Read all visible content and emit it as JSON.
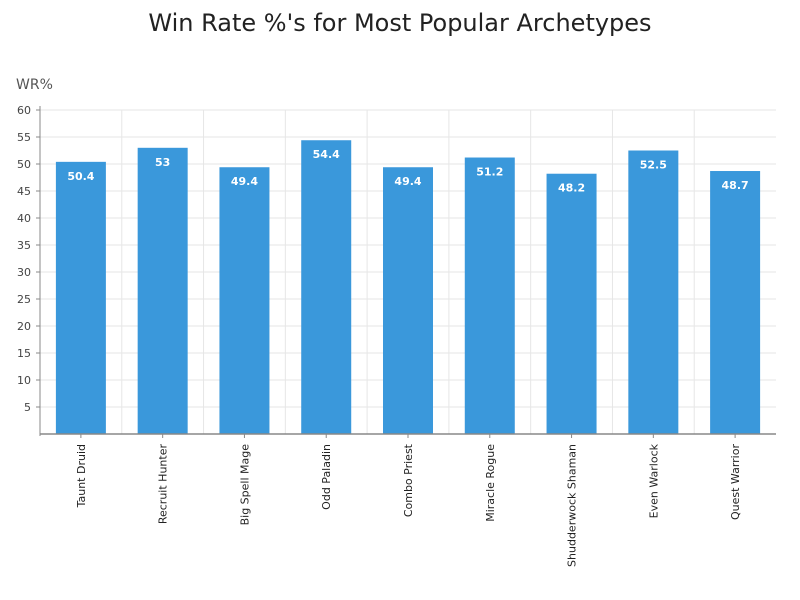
{
  "chart_data": {
    "type": "bar",
    "title": "Win Rate %'s for Most Popular Archetypes",
    "xlabel": "",
    "ylabel": "WR%",
    "categories": [
      "Taunt Druid",
      "Recruit Hunter",
      "Big Spell Mage",
      "Odd Paladin",
      "Combo Priest",
      "Miracle Rogue",
      "Shudderwock Shaman",
      "Even Warlock",
      "Quest Warrior"
    ],
    "values": [
      50.4,
      53,
      49.4,
      54.4,
      49.4,
      51.2,
      48.2,
      52.5,
      48.7
    ],
    "data_labels": [
      "50.4",
      "53",
      "49.4",
      "54.4",
      "49.4",
      "51.2",
      "48.2",
      "52.5",
      "48.7"
    ],
    "ylim": [
      0,
      60
    ],
    "yticks": [
      5,
      10,
      15,
      20,
      25,
      30,
      35,
      40,
      45,
      50,
      55,
      60
    ],
    "grid": true,
    "legend": "none",
    "colors": {
      "bar": "#3a98db",
      "grid": "#e6e6e6",
      "axis": "#888888",
      "label": "#ffffff"
    }
  }
}
